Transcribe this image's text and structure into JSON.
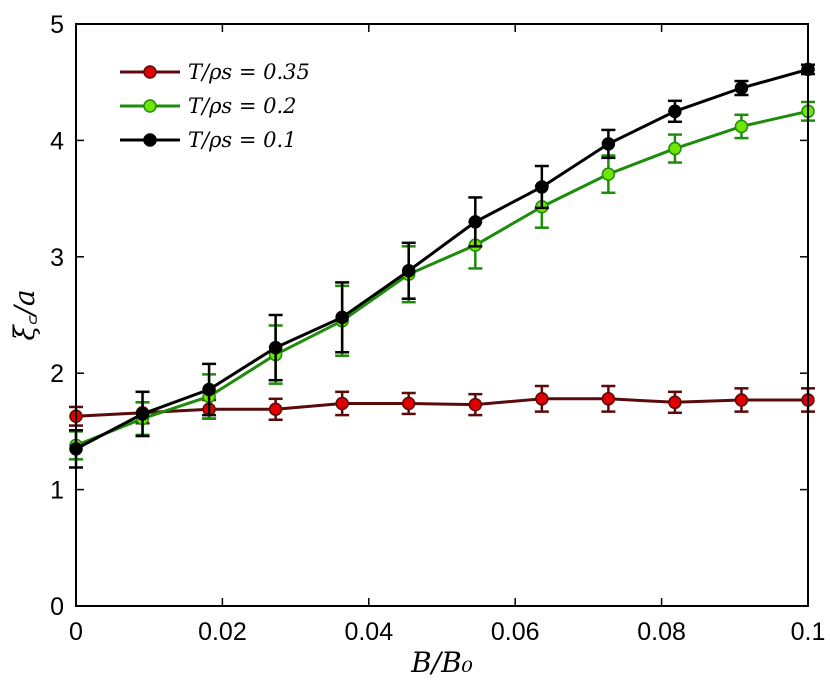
{
  "chart_data": {
    "type": "line",
    "title": "",
    "xlabel": "B/B₀",
    "ylabel": "ξ꜀/a",
    "xlim": [
      0,
      0.1
    ],
    "ylim": [
      0,
      5
    ],
    "xticks": [
      0,
      0.02,
      0.04,
      0.06,
      0.08,
      0.1
    ],
    "xtick_labels": [
      "0",
      "0.02",
      "0.04",
      "0.06",
      "0.08",
      "0.1"
    ],
    "yticks": [
      0,
      1,
      2,
      3,
      4,
      5
    ],
    "ytick_labels": [
      "0",
      "1",
      "2",
      "3",
      "4",
      "5"
    ],
    "grid": false,
    "legend_position": "top-left",
    "x": [
      0,
      0.00909,
      0.01818,
      0.02727,
      0.03636,
      0.04545,
      0.05455,
      0.06364,
      0.07273,
      0.08182,
      0.09091,
      0.1
    ],
    "series": [
      {
        "name": "T/ρs = 0.35",
        "line_color": "#5a0a0a",
        "marker_color": "#e00000",
        "values": [
          1.63,
          1.66,
          1.69,
          1.69,
          1.74,
          1.74,
          1.73,
          1.78,
          1.78,
          1.75,
          1.77,
          1.77
        ],
        "errors": [
          0.08,
          0.09,
          0.08,
          0.09,
          0.1,
          0.09,
          0.09,
          0.11,
          0.11,
          0.09,
          0.1,
          0.1
        ]
      },
      {
        "name": "T/ρs = 0.2",
        "line_color": "#1e8c0a",
        "marker_color": "#6fe600",
        "values": [
          1.38,
          1.61,
          1.8,
          2.16,
          2.45,
          2.85,
          3.1,
          3.43,
          3.71,
          3.93,
          4.12,
          4.25
        ],
        "errors": [
          0.12,
          0.14,
          0.19,
          0.25,
          0.3,
          0.24,
          0.2,
          0.18,
          0.16,
          0.12,
          0.1,
          0.08
        ]
      },
      {
        "name": "T/ρs = 0.1",
        "line_color": "#000000",
        "marker_color": "#000000",
        "values": [
          1.35,
          1.65,
          1.86,
          2.22,
          2.48,
          2.88,
          3.3,
          3.6,
          3.97,
          4.25,
          4.45,
          4.61
        ],
        "errors": [
          0.16,
          0.19,
          0.22,
          0.28,
          0.3,
          0.24,
          0.21,
          0.18,
          0.12,
          0.09,
          0.06,
          0.04
        ]
      }
    ]
  }
}
